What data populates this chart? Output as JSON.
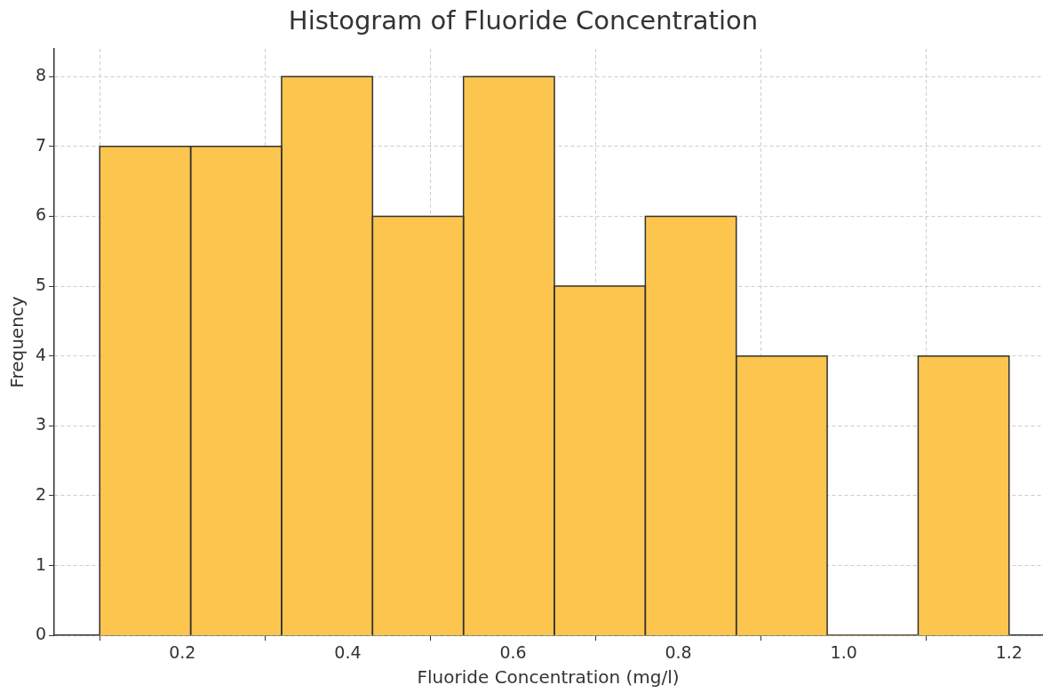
{
  "chart_data": {
    "type": "histogram",
    "title": "Histogram of Fluoride Concentration",
    "xlabel": "Fluoride Concentration (mg/l)",
    "ylabel": "Frequency",
    "bins": [
      0.1,
      0.21,
      0.32,
      0.43,
      0.54,
      0.65,
      0.76,
      0.87,
      0.98,
      1.09,
      1.2
    ],
    "values": [
      7,
      7,
      8,
      6,
      8,
      5,
      6,
      4,
      0,
      4
    ],
    "color": "#fcc54e",
    "xlim": [
      0.045,
      1.24
    ],
    "xticks": [
      0.2,
      0.4,
      0.6,
      0.8,
      {
        "value": 1,
        "label": "1.0"
      },
      1.2
    ],
    "ylim": [
      0,
      8.4
    ],
    "yticks": [
      0,
      1,
      2,
      3,
      4,
      5,
      6,
      7,
      8
    ],
    "grid": true
  }
}
